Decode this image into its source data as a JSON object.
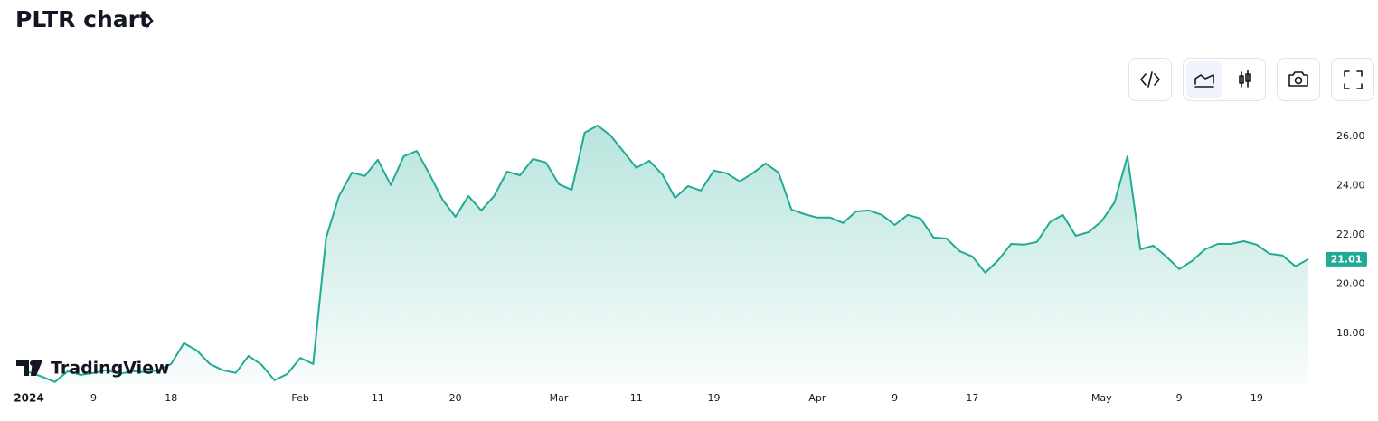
{
  "chart_data": {
    "type": "area",
    "title": "PLTR chart",
    "watermark": "TradingView",
    "categories": [
      "2024",
      null,
      null,
      null,
      null,
      "9",
      null,
      null,
      null,
      null,
      null,
      "18",
      null,
      null,
      null,
      null,
      null,
      null,
      null,
      null,
      null,
      "Feb",
      null,
      null,
      null,
      null,
      null,
      "11",
      null,
      null,
      null,
      null,
      null,
      "20",
      null,
      null,
      null,
      null,
      null,
      null,
      null,
      "Mar",
      null,
      null,
      null,
      null,
      null,
      "11",
      null,
      null,
      null,
      null,
      null,
      "19",
      null,
      null,
      null,
      null,
      null,
      null,
      null,
      "Apr",
      null,
      null,
      null,
      null,
      null,
      "9",
      null,
      null,
      null,
      null,
      null,
      "17",
      null,
      null,
      null,
      null,
      null,
      null,
      null,
      null,
      null,
      "May",
      null,
      null,
      null,
      null,
      null,
      "9",
      null,
      null,
      null,
      null,
      null,
      "19",
      null,
      null,
      null,
      null
    ],
    "values": [
      16.42,
      16.24,
      16.02,
      16.46,
      16.31,
      16.39,
      16.5,
      16.35,
      16.46,
      16.42,
      16.5,
      16.75,
      17.6,
      17.3,
      16.75,
      16.5,
      16.39,
      17.08,
      16.72,
      16.09,
      16.35,
      17.0,
      16.75,
      21.89,
      23.58,
      24.53,
      24.39,
      25.05,
      24.02,
      25.19,
      25.41,
      24.46,
      23.43,
      22.73,
      23.58,
      22.99,
      23.58,
      24.57,
      24.42,
      25.08,
      24.94,
      24.06,
      23.83,
      26.15,
      26.44,
      26.04,
      25.38,
      24.72,
      25.01,
      24.46,
      23.5,
      23.98,
      23.8,
      24.61,
      24.5,
      24.17,
      24.5,
      24.9,
      24.53,
      23.03,
      22.84,
      22.7,
      22.7,
      22.48,
      22.95,
      22.99,
      22.81,
      22.4,
      22.81,
      22.66,
      21.89,
      21.85,
      21.34,
      21.12,
      20.46,
      20.97,
      21.63,
      21.6,
      21.71,
      22.51,
      22.81,
      21.96,
      22.11,
      22.55,
      23.32,
      25.19,
      21.41,
      21.56,
      21.12,
      20.61,
      20.94,
      21.41,
      21.63,
      21.63,
      21.74,
      21.6,
      21.23,
      21.16,
      20.72,
      21.01
    ],
    "last_price_label": "21.01",
    "color": "#22ab94",
    "ylim": [
      15.94,
      27.98
    ],
    "yticks": [
      {
        "value": 18,
        "label": "18.00"
      },
      {
        "value": 20,
        "label": "20.00"
      },
      {
        "value": 22,
        "label": "22.00"
      },
      {
        "value": 24,
        "label": "24.00"
      },
      {
        "value": 26,
        "label": "26.00"
      }
    ],
    "grid": false
  }
}
